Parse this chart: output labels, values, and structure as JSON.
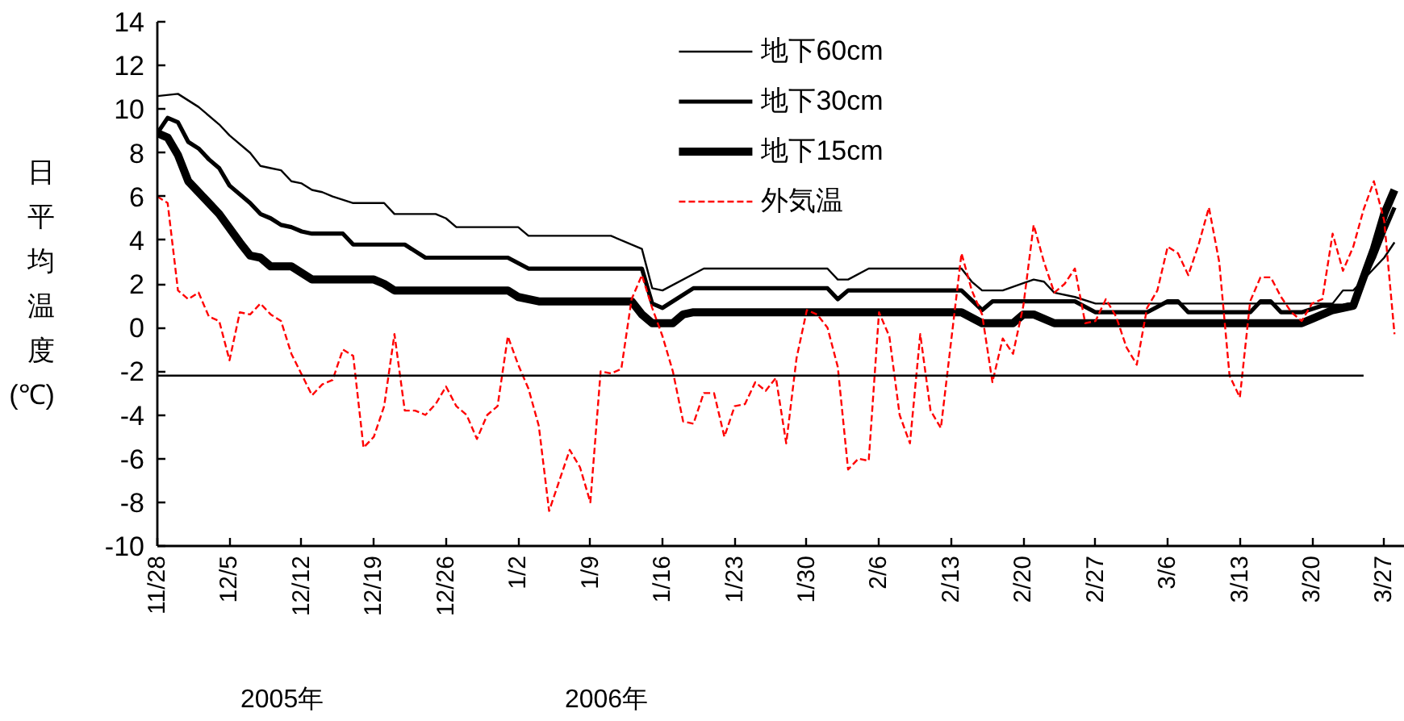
{
  "chart_data": {
    "type": "line",
    "ylabel": "日平均温度(℃)",
    "xlim": [
      "2005-11-28",
      "2006-03-29"
    ],
    "ylim": [
      -10,
      14
    ],
    "xticks": [
      {
        "value": "2005-11-28",
        "label": "11/28"
      },
      {
        "value": "2005-12-05",
        "label": "12/5"
      },
      {
        "value": "2005-12-12",
        "label": "12/12"
      },
      {
        "value": "2005-12-19",
        "label": "12/19"
      },
      {
        "value": "2005-12-26",
        "label": "12/26"
      },
      {
        "value": "2006-01-02",
        "label": "1/2"
      },
      {
        "value": "2006-01-09",
        "label": "1/9"
      },
      {
        "value": "2006-01-16",
        "label": "1/16"
      },
      {
        "value": "2006-01-23",
        "label": "1/23"
      },
      {
        "value": "2006-01-30",
        "label": "1/30"
      },
      {
        "value": "2006-02-06",
        "label": "2/6"
      },
      {
        "value": "2006-02-13",
        "label": "2/13"
      },
      {
        "value": "2006-02-20",
        "label": "2/20"
      },
      {
        "value": "2006-02-27",
        "label": "2/27"
      },
      {
        "value": "2006-03-06",
        "label": "3/6"
      },
      {
        "value": "2006-03-13",
        "label": "3/13"
      },
      {
        "value": "2006-03-20",
        "label": "3/20"
      },
      {
        "value": "2006-03-27",
        "label": "3/27"
      }
    ],
    "yticks": [
      -10,
      -8,
      -6,
      -4,
      -2,
      0,
      2,
      4,
      6,
      8,
      10,
      12,
      14
    ],
    "grid": false,
    "legend": "top",
    "annotations": [
      "2005年",
      "2006年"
    ],
    "series": [
      {
        "name": "地下60cm",
        "color": "#000000",
        "x": [
          "2005-11-28",
          "2005-11-30",
          "2005-12-02",
          "2005-12-04",
          "2005-12-05",
          "2005-12-07",
          "2005-12-08",
          "2005-12-09",
          "2005-12-10",
          "2005-12-11",
          "2005-12-12",
          "2005-12-13",
          "2005-12-14",
          "2005-12-15",
          "2005-12-17",
          "2005-12-20",
          "2005-12-21",
          "2005-12-25",
          "2005-12-26",
          "2005-12-27",
          "2006-01-02",
          "2006-01-03",
          "2006-01-11",
          "2006-01-14",
          "2006-01-15",
          "2006-01-16",
          "2006-01-20",
          "2006-02-01",
          "2006-02-02",
          "2006-02-03",
          "2006-02-05",
          "2006-02-14",
          "2006-02-15",
          "2006-02-16",
          "2006-02-18",
          "2006-02-21",
          "2006-02-22",
          "2006-02-23",
          "2006-02-25",
          "2006-02-27",
          "2006-03-22",
          "2006-03-23",
          "2006-03-24",
          "2006-03-25",
          "2006-03-26",
          "2006-03-27",
          "2006-03-28"
        ],
        "values": [
          10.6,
          10.7,
          10.1,
          9.3,
          8.8,
          8.0,
          7.4,
          7.3,
          7.2,
          6.7,
          6.6,
          6.3,
          6.2,
          6.0,
          5.7,
          5.7,
          5.2,
          5.2,
          5.0,
          4.6,
          4.6,
          4.2,
          4.2,
          3.6,
          1.8,
          1.7,
          2.7,
          2.7,
          2.2,
          2.2,
          2.7,
          2.7,
          2.1,
          1.7,
          1.7,
          2.2,
          2.1,
          1.6,
          1.4,
          1.1,
          1.1,
          1.7,
          1.7,
          2.2,
          2.7,
          3.2,
          3.9
        ]
      },
      {
        "name": "地下30cm",
        "color": "#000000",
        "x": [
          "2005-11-28",
          "2005-11-29",
          "2005-11-30",
          "2005-12-01",
          "2005-12-02",
          "2005-12-03",
          "2005-12-04",
          "2005-12-05",
          "2005-12-07",
          "2005-12-08",
          "2005-12-09",
          "2005-12-10",
          "2005-12-11",
          "2005-12-12",
          "2005-12-13",
          "2005-12-16",
          "2005-12-17",
          "2005-12-22",
          "2005-12-23",
          "2005-12-24",
          "2006-01-01",
          "2006-01-03",
          "2006-01-14",
          "2006-01-15",
          "2006-01-16",
          "2006-01-19",
          "2006-02-01",
          "2006-02-02",
          "2006-02-03",
          "2006-02-14",
          "2006-02-16",
          "2006-02-17",
          "2006-02-25",
          "2006-02-27",
          "2006-03-04",
          "2006-03-06",
          "2006-03-07",
          "2006-03-08",
          "2006-03-14",
          "2006-03-15",
          "2006-03-16",
          "2006-03-17",
          "2006-03-19",
          "2006-03-21",
          "2006-03-23",
          "2006-03-24",
          "2006-03-25",
          "2006-03-26",
          "2006-03-27",
          "2006-03-28"
        ],
        "values": [
          8.9,
          9.6,
          9.4,
          8.5,
          8.2,
          7.7,
          7.3,
          6.5,
          5.7,
          5.2,
          5.0,
          4.7,
          4.6,
          4.4,
          4.3,
          4.3,
          3.8,
          3.8,
          3.5,
          3.2,
          3.2,
          2.7,
          2.7,
          1.1,
          0.9,
          1.8,
          1.8,
          1.3,
          1.7,
          1.7,
          0.8,
          1.2,
          1.2,
          0.7,
          0.7,
          1.2,
          1.2,
          0.7,
          0.7,
          1.2,
          1.2,
          0.7,
          0.7,
          1.0,
          1.0,
          1.1,
          2.2,
          3.2,
          4.4,
          5.5
        ]
      },
      {
        "name": "地下15cm",
        "color": "#000000",
        "x": [
          "2005-11-28",
          "2005-11-29",
          "2005-11-30",
          "2005-12-01",
          "2005-12-02",
          "2005-12-03",
          "2005-12-04",
          "2005-12-06",
          "2005-12-07",
          "2005-12-08",
          "2005-12-09",
          "2005-12-11",
          "2005-12-13",
          "2005-12-19",
          "2005-12-20",
          "2005-12-21",
          "2006-01-01",
          "2006-01-02",
          "2006-01-04",
          "2006-01-13",
          "2006-01-14",
          "2006-01-15",
          "2006-01-17",
          "2006-01-18",
          "2006-01-19",
          "2006-02-14",
          "2006-02-16",
          "2006-02-19",
          "2006-02-20",
          "2006-02-21",
          "2006-02-23",
          "2006-03-19",
          "2006-03-20",
          "2006-03-22",
          "2006-03-23",
          "2006-03-24",
          "2006-03-25",
          "2006-03-26",
          "2006-03-27",
          "2006-03-28"
        ],
        "values": [
          8.9,
          8.7,
          7.9,
          6.7,
          6.2,
          5.7,
          5.2,
          3.9,
          3.3,
          3.2,
          2.8,
          2.8,
          2.2,
          2.2,
          2.0,
          1.7,
          1.7,
          1.4,
          1.2,
          1.2,
          0.6,
          0.2,
          0.2,
          0.6,
          0.7,
          0.7,
          0.2,
          0.2,
          0.6,
          0.6,
          0.2,
          0.2,
          0.4,
          0.8,
          0.9,
          1.0,
          2.3,
          3.6,
          5.2,
          6.3
        ]
      },
      {
        "name": "外気温",
        "color": "#ff0000",
        "line_style": "dashed",
        "x": [
          "2005-11-28",
          "2005-11-29",
          "2005-11-30",
          "2005-12-01",
          "2005-12-02",
          "2005-12-03",
          "2005-12-04",
          "2005-12-05",
          "2005-12-06",
          "2005-12-07",
          "2005-12-08",
          "2005-12-09",
          "2005-12-10",
          "2005-12-11",
          "2005-12-13",
          "2005-12-14",
          "2005-12-15",
          "2005-12-16",
          "2005-12-17",
          "2005-12-18",
          "2005-12-19",
          "2005-12-20",
          "2005-12-21",
          "2005-12-22",
          "2005-12-23",
          "2005-12-24",
          "2005-12-25",
          "2005-12-26",
          "2005-12-27",
          "2005-12-28",
          "2005-12-29",
          "2005-12-30",
          "2005-12-31",
          "2006-01-01",
          "2006-01-02",
          "2006-01-03",
          "2006-01-04",
          "2006-01-05",
          "2006-01-06",
          "2006-01-07",
          "2006-01-08",
          "2006-01-09",
          "2006-01-10",
          "2006-01-11",
          "2006-01-12",
          "2006-01-13",
          "2006-01-14",
          "2006-01-15",
          "2006-01-16",
          "2006-01-17",
          "2006-01-18",
          "2006-01-19",
          "2006-01-20",
          "2006-01-21",
          "2006-01-22",
          "2006-01-23",
          "2006-01-24",
          "2006-01-25",
          "2006-01-26",
          "2006-01-27",
          "2006-01-28",
          "2006-01-29",
          "2006-01-30",
          "2006-01-31",
          "2006-02-01",
          "2006-02-02",
          "2006-02-03",
          "2006-02-04",
          "2006-02-05",
          "2006-02-06",
          "2006-02-07",
          "2006-02-08",
          "2006-02-09",
          "2006-02-10",
          "2006-02-11",
          "2006-02-12",
          "2006-02-14",
          "2006-02-15",
          "2006-02-16",
          "2006-02-17",
          "2006-02-18",
          "2006-02-19",
          "2006-02-20",
          "2006-02-21",
          "2006-02-22",
          "2006-02-23",
          "2006-02-24",
          "2006-02-25",
          "2006-02-26",
          "2006-02-27",
          "2006-02-28",
          "2006-03-01",
          "2006-03-02",
          "2006-03-03",
          "2006-03-04",
          "2006-03-05",
          "2006-03-06",
          "2006-03-07",
          "2006-03-08",
          "2006-03-09",
          "2006-03-10",
          "2006-03-11",
          "2006-03-12",
          "2006-03-13",
          "2006-03-14",
          "2006-03-15",
          "2006-03-16",
          "2006-03-17",
          "2006-03-18",
          "2006-03-19",
          "2006-03-20",
          "2006-03-21",
          "2006-03-22",
          "2006-03-23",
          "2006-03-24",
          "2006-03-25",
          "2006-03-26",
          "2006-03-27",
          "2006-03-28"
        ],
        "values": [
          6.0,
          5.7,
          1.7,
          1.3,
          1.6,
          0.5,
          0.3,
          -1.5,
          0.7,
          0.6,
          1.1,
          0.6,
          0.3,
          -1.2,
          -3.1,
          -2.6,
          -2.4,
          -1.0,
          -1.3,
          -5.5,
          -5.0,
          -3.6,
          -0.3,
          -3.8,
          -3.8,
          -4.0,
          -3.5,
          -2.7,
          -3.6,
          -4.0,
          -5.1,
          -4.0,
          -3.6,
          -0.4,
          -1.7,
          -2.8,
          -4.5,
          -8.4,
          -7.0,
          -5.6,
          -6.4,
          -8.0,
          -2.0,
          -2.1,
          -1.9,
          1.3,
          2.4,
          0.9,
          -0.4,
          -2.0,
          -4.3,
          -4.4,
          -3.0,
          -3.0,
          -5.0,
          -3.6,
          -3.5,
          -2.5,
          -2.9,
          -2.3,
          -5.3,
          -1.4,
          0.8,
          0.6,
          0.0,
          -1.8,
          -6.5,
          -6.0,
          -6.1,
          0.7,
          -0.4,
          -4.0,
          -5.3,
          -0.3,
          -3.8,
          -4.6,
          3.4,
          1.7,
          0.6,
          -2.5,
          -0.5,
          -1.2,
          1.0,
          4.7,
          3.0,
          1.6,
          2.0,
          2.7,
          0.2,
          0.3,
          1.3,
          0.5,
          -0.9,
          -1.7,
          0.9,
          1.7,
          3.7,
          3.4,
          2.4,
          3.8,
          5.5,
          3.0,
          -2.2,
          -3.2,
          1.2,
          2.3,
          2.3,
          1.4,
          0.7,
          0.3,
          1.1,
          1.3,
          4.3,
          2.6,
          3.7,
          5.4,
          6.7,
          4.9,
          -0.3
        ]
      },
      {
        "color": "#000000",
        "x": [
          "2005-11-28",
          "2006-03-25"
        ],
        "values": [
          -2.2,
          -2.2
        ]
      }
    ]
  }
}
